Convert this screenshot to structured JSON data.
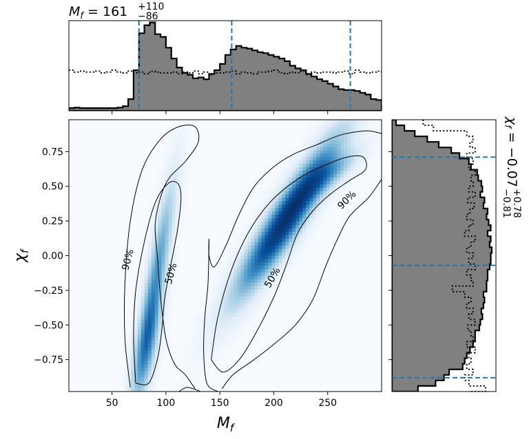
{
  "chart_data": [
    {
      "type": "heatmap",
      "panel": "joint",
      "xlabel": "M_f",
      "ylabel": "χ_f",
      "xlim": [
        10,
        300
      ],
      "ylim": [
        -0.98,
        0.98
      ],
      "xticks": [
        50,
        100,
        150,
        200,
        250
      ],
      "xtick_labels": [
        "50",
        "100",
        "150",
        "200",
        "250"
      ],
      "yticks": [
        0.75,
        0.5,
        0.25,
        0.0,
        -0.25,
        -0.5,
        -0.75
      ],
      "ytick_labels": [
        "0.75",
        "0.50",
        "0.25",
        "0.00",
        "−0.25",
        "−0.50",
        "−0.75"
      ],
      "colormap": [
        "#f7fbff",
        "#deebf7",
        "#9ecae1",
        "#4292c6",
        "#08519c",
        "#08306b"
      ],
      "density_components": [
        {
          "mx": 82,
          "my": -0.65,
          "sx": 9,
          "sy": 0.28,
          "rho": 0.7,
          "w": 0.55
        },
        {
          "mx": 93,
          "my": -0.05,
          "sx": 11,
          "sy": 0.42,
          "rho": 0.85,
          "w": 0.45
        },
        {
          "mx": 213,
          "my": 0.28,
          "sx": 32,
          "sy": 0.38,
          "rho": 0.93,
          "w": 1.0
        },
        {
          "mx": 255,
          "my": 0.6,
          "sx": 18,
          "sy": 0.12,
          "rho": 0.8,
          "w": 0.3
        }
      ],
      "contours": [
        {
          "level": "90%",
          "label": "90%",
          "paths": [
            [
              [
                67,
                -0.95
              ],
              [
                62,
                -0.6
              ],
              [
                62,
                -0.2
              ],
              [
                67,
                0.25
              ],
              [
                78,
                0.62
              ],
              [
                95,
                0.84
              ],
              [
                112,
                0.93
              ],
              [
                127,
                0.93
              ],
              [
                130,
                0.82
              ],
              [
                118,
                0.68
              ],
              [
                103,
                0.56
              ],
              [
                95,
                0.42
              ],
              [
                90,
                0.22
              ],
              [
                92,
                0.0
              ],
              [
                95,
                -0.3
              ],
              [
                100,
                -0.6
              ],
              [
                108,
                -0.78
              ],
              [
                118,
                -0.86
              ],
              [
                127,
                -0.96
              ]
            ],
            [
              [
                140,
                0.12
              ],
              [
                140,
                0.0
              ],
              [
                145,
                -0.08
              ],
              [
                156,
                0.08
              ],
              [
                168,
                0.3
              ],
              [
                182,
                0.5
              ],
              [
                200,
                0.64
              ],
              [
                218,
                0.73
              ],
              [
                240,
                0.8
              ],
              [
                262,
                0.87
              ],
              [
                286,
                0.9
              ],
              [
                300,
                0.88
              ]
            ],
            [
              [
                300,
                0.55
              ],
              [
                288,
                0.42
              ],
              [
                270,
                0.28
              ],
              [
                258,
                0.1
              ],
              [
                248,
                -0.08
              ],
              [
                236,
                -0.32
              ],
              [
                220,
                -0.5
              ],
              [
                200,
                -0.64
              ],
              [
                180,
                -0.76
              ],
              [
                162,
                -0.86
              ],
              [
                152,
                -0.96
              ]
            ],
            [
              [
                148,
                -0.98
              ],
              [
                138,
                -0.92
              ],
              [
                135,
                -0.7
              ],
              [
                136,
                -0.45
              ],
              [
                139,
                -0.2
              ],
              [
                140,
                0.12
              ]
            ],
            [
              [
                112,
                -0.98
              ],
              [
                120,
                -0.95
              ],
              [
                132,
                -0.98
              ]
            ]
          ]
        },
        {
          "level": "50%",
          "label": "50%",
          "paths": [
            [
              [
                72,
                -0.92
              ],
              [
                70,
                -0.6
              ],
              [
                72,
                -0.25
              ],
              [
                80,
                0.1
              ],
              [
                90,
                0.38
              ],
              [
                102,
                0.52
              ],
              [
                111,
                0.52
              ],
              [
                114,
                0.42
              ],
              [
                111,
                0.2
              ],
              [
                105,
                -0.05
              ],
              [
                99,
                -0.3
              ],
              [
                96,
                -0.55
              ],
              [
                92,
                -0.75
              ],
              [
                84,
                -0.92
              ],
              [
                72,
                -0.92
              ]
            ],
            [
              [
                142,
                -0.75
              ],
              [
                148,
                -0.45
              ],
              [
                160,
                -0.12
              ],
              [
                176,
                0.16
              ],
              [
                196,
                0.38
              ],
              [
                220,
                0.54
              ],
              [
                244,
                0.64
              ],
              [
                268,
                0.71
              ],
              [
                283,
                0.71
              ],
              [
                285,
                0.62
              ],
              [
                270,
                0.54
              ],
              [
                252,
                0.44
              ],
              [
                236,
                0.32
              ],
              [
                222,
                0.16
              ],
              [
                212,
                -0.06
              ],
              [
                200,
                -0.3
              ],
              [
                184,
                -0.55
              ],
              [
                168,
                -0.75
              ],
              [
                153,
                -0.84
              ],
              [
                142,
                -0.75
              ]
            ]
          ]
        }
      ],
      "contour_labels": [
        {
          "text": "90%",
          "x": 65,
          "y": -0.03,
          "angle": -75
        },
        {
          "text": "50%",
          "x": 105,
          "y": -0.13,
          "angle": -75
        },
        {
          "text": "50%",
          "x": 199,
          "y": -0.16,
          "angle": -60
        },
        {
          "text": "90%",
          "x": 268,
          "y": 0.4,
          "angle": -45
        }
      ]
    },
    {
      "type": "area",
      "panel": "top-marginal",
      "title": "M_f = 161",
      "title_value": "161",
      "title_sup": "+110",
      "title_sub": "−86",
      "x": [
        10,
        15,
        20,
        25,
        30,
        35,
        40,
        45,
        50,
        55,
        60,
        65,
        70,
        75,
        80,
        85,
        90,
        95,
        100,
        105,
        110,
        115,
        120,
        125,
        130,
        135,
        140,
        145,
        150,
        155,
        160,
        165,
        170,
        175,
        180,
        185,
        190,
        195,
        200,
        205,
        210,
        215,
        220,
        225,
        230,
        235,
        240,
        245,
        250,
        255,
        260,
        265,
        270,
        275,
        280,
        285,
        290,
        295,
        300
      ],
      "posterior": [
        0.03,
        0.035,
        0.03,
        0.03,
        0.03,
        0.03,
        0.03,
        0.03,
        0.03,
        0.035,
        0.05,
        0.13,
        0.45,
        0.86,
        0.95,
        0.98,
        0.85,
        0.82,
        0.7,
        0.58,
        0.48,
        0.42,
        0.4,
        0.36,
        0.37,
        0.35,
        0.41,
        0.45,
        0.52,
        0.62,
        0.68,
        0.72,
        0.7,
        0.69,
        0.67,
        0.65,
        0.64,
        0.62,
        0.6,
        0.58,
        0.55,
        0.5,
        0.47,
        0.45,
        0.41,
        0.38,
        0.35,
        0.33,
        0.3,
        0.27,
        0.24,
        0.23,
        0.23,
        0.22,
        0.2,
        0.18,
        0.13,
        0.12,
        0.12
      ],
      "prior": [
        0.45,
        0.43,
        0.44,
        0.43,
        0.43,
        0.44,
        0.42,
        0.43,
        0.45,
        0.43,
        0.42,
        0.44,
        0.42,
        0.43,
        0.41,
        0.44,
        0.43,
        0.42,
        0.42,
        0.43,
        0.41,
        0.43,
        0.42,
        0.44,
        0.41,
        0.43,
        0.4,
        0.42,
        0.42,
        0.43,
        0.44,
        0.41,
        0.43,
        0.42,
        0.41,
        0.43,
        0.43,
        0.44,
        0.45,
        0.42,
        0.41,
        0.43,
        0.42,
        0.44,
        0.4,
        0.43,
        0.42,
        0.43,
        0.43,
        0.42,
        0.43,
        0.44,
        0.41,
        0.45,
        0.43,
        0.42,
        0.43,
        0.44,
        0.42
      ],
      "ylim": [
        0,
        1.0
      ],
      "quantile_lines": [
        75,
        161,
        271
      ]
    },
    {
      "type": "area",
      "panel": "right-marginal",
      "title": "χ_f = −0.07",
      "title_value": "−0.07",
      "title_sup": "+0.78",
      "title_sub": "−0.81",
      "y": [
        0.98,
        0.94,
        0.9,
        0.86,
        0.82,
        0.78,
        0.74,
        0.7,
        0.66,
        0.62,
        0.58,
        0.54,
        0.5,
        0.46,
        0.42,
        0.38,
        0.34,
        0.3,
        0.26,
        0.22,
        0.18,
        0.14,
        0.1,
        0.06,
        0.02,
        -0.02,
        -0.06,
        -0.1,
        -0.14,
        -0.18,
        -0.22,
        -0.26,
        -0.3,
        -0.34,
        -0.38,
        -0.42,
        -0.46,
        -0.5,
        -0.54,
        -0.58,
        -0.62,
        -0.66,
        -0.7,
        -0.74,
        -0.78,
        -0.82,
        -0.86,
        -0.9,
        -0.94,
        -0.98
      ],
      "posterior": [
        0.04,
        0.12,
        0.22,
        0.34,
        0.45,
        0.57,
        0.65,
        0.74,
        0.76,
        0.82,
        0.83,
        0.86,
        0.87,
        0.85,
        0.89,
        0.88,
        0.92,
        0.91,
        0.93,
        0.95,
        0.92,
        0.95,
        0.94,
        0.96,
        0.95,
        0.95,
        0.94,
        0.92,
        0.92,
        0.91,
        0.91,
        0.88,
        0.89,
        0.88,
        0.86,
        0.87,
        0.85,
        0.84,
        0.8,
        0.8,
        0.78,
        0.75,
        0.72,
        0.7,
        0.68,
        0.55,
        0.5,
        0.42,
        0.25,
        0.0
      ],
      "prior": [
        0.3,
        0.4,
        0.72,
        0.78,
        0.75,
        0.8,
        0.72,
        0.78,
        0.74,
        0.8,
        0.76,
        0.78,
        0.74,
        0.8,
        0.73,
        0.79,
        0.75,
        0.72,
        0.78,
        0.74,
        0.7,
        0.8,
        0.76,
        0.72,
        0.78,
        0.74,
        0.8,
        0.72,
        0.76,
        0.78,
        0.58,
        0.7,
        0.76,
        0.72,
        0.78,
        0.74,
        0.8,
        0.73,
        0.76,
        0.78,
        0.72,
        0.8,
        0.74,
        0.76,
        0.72,
        0.78,
        0.7,
        0.74,
        0.9,
        0.74
      ],
      "xlim": [
        0,
        1.0
      ],
      "quantile_lines": [
        0.71,
        -0.07,
        -0.88
      ]
    }
  ],
  "style": {
    "posterior_fill": "#808080",
    "quantile_color": "#1f77b4",
    "contour_color": "#000000"
  }
}
